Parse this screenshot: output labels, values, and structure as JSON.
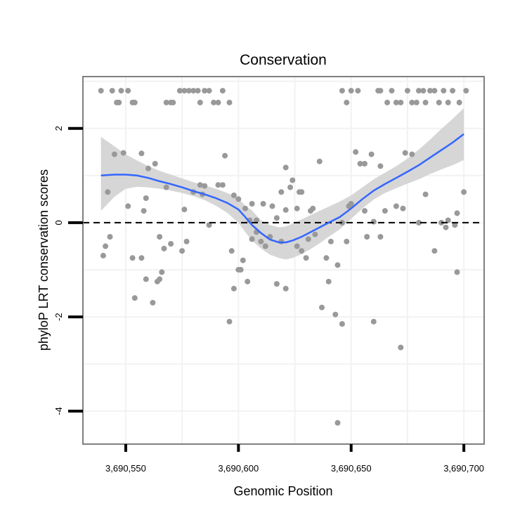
{
  "chart_data": {
    "type": "scatter",
    "title": "Conservation",
    "xlabel": "Genomic Position",
    "ylabel": "phyloP LRT conservation scores",
    "xlim": [
      3690531,
      3690709
    ],
    "ylim": [
      -4.7,
      3.1
    ],
    "x_ticks": [
      {
        "value": 3690550,
        "label": "3,690,550"
      },
      {
        "value": 3690600,
        "label": "3,690,600"
      },
      {
        "value": 3690650,
        "label": "3,690,650"
      },
      {
        "value": 3690700,
        "label": "3,690,700"
      }
    ],
    "y_ticks": [
      {
        "value": 2,
        "label": "2"
      },
      {
        "value": 0,
        "label": "0"
      },
      {
        "value": -2,
        "label": "-2"
      },
      {
        "value": -4,
        "label": "-4"
      }
    ],
    "reference_line": {
      "y": 0,
      "style": "dashed"
    },
    "grid": true,
    "colors": {
      "points": "#999999",
      "smooth": "#3366FF",
      "band": "#D6D6D6",
      "border": "#7F7F7F",
      "grid": "#F2F2F2"
    },
    "series": [
      {
        "name": "scores",
        "points": [
          [
            3690539,
            2.8
          ],
          [
            3690544,
            2.8
          ],
          [
            3690548,
            2.8
          ],
          [
            3690551,
            2.8
          ],
          [
            3690546,
            2.55
          ],
          [
            3690547,
            2.55
          ],
          [
            3690553,
            2.55
          ],
          [
            3690554,
            2.55
          ],
          [
            3690568,
            2.55
          ],
          [
            3690570,
            2.55
          ],
          [
            3690571,
            2.55
          ],
          [
            3690574,
            2.8
          ],
          [
            3690576,
            2.8
          ],
          [
            3690578,
            2.8
          ],
          [
            3690580,
            2.8
          ],
          [
            3690582,
            2.8
          ],
          [
            3690583,
            2.55
          ],
          [
            3690585,
            2.8
          ],
          [
            3690587,
            2.8
          ],
          [
            3690589,
            2.55
          ],
          [
            3690591,
            2.55
          ],
          [
            3690593,
            2.8
          ],
          [
            3690596,
            2.55
          ],
          [
            3690646,
            2.8
          ],
          [
            3690648,
            2.55
          ],
          [
            3690650,
            2.8
          ],
          [
            3690653,
            2.8
          ],
          [
            3690662,
            2.8
          ],
          [
            3690663,
            2.8
          ],
          [
            3690666,
            2.55
          ],
          [
            3690668,
            2.8
          ],
          [
            3690670,
            2.55
          ],
          [
            3690672,
            2.55
          ],
          [
            3690675,
            2.8
          ],
          [
            3690677,
            2.55
          ],
          [
            3690679,
            2.55
          ],
          [
            3690680,
            2.8
          ],
          [
            3690682,
            2.8
          ],
          [
            3690683,
            2.55
          ],
          [
            3690685,
            2.8
          ],
          [
            3690687,
            2.8
          ],
          [
            3690689,
            2.55
          ],
          [
            3690691,
            2.8
          ],
          [
            3690693,
            2.55
          ],
          [
            3690695,
            2.8
          ],
          [
            3690698,
            2.55
          ],
          [
            3690701,
            2.8
          ],
          [
            3690545,
            1.45
          ],
          [
            3690549,
            1.48
          ],
          [
            3690557,
            1.47
          ],
          [
            3690594,
            1.42
          ],
          [
            3690652,
            1.5
          ],
          [
            3690654,
            1.25
          ],
          [
            3690656,
            1.25
          ],
          [
            3690659,
            1.45
          ],
          [
            3690663,
            1.2
          ],
          [
            3690674,
            1.48
          ],
          [
            3690677,
            1.45
          ],
          [
            3690621,
            1.17
          ],
          [
            3690636,
            1.3
          ],
          [
            3690650,
            0.4
          ],
          [
            3690542,
            0.65
          ],
          [
            3690551,
            0.35
          ],
          [
            3690558,
            0.25
          ],
          [
            3690559,
            0.52
          ],
          [
            3690560,
            1.15
          ],
          [
            3690563,
            1.25
          ],
          [
            3690568,
            0.75
          ],
          [
            3690576,
            0.28
          ],
          [
            3690580,
            0.65
          ],
          [
            3690583,
            0.8
          ],
          [
            3690584,
            0.6
          ],
          [
            3690585,
            0.78
          ],
          [
            3690591,
            0.8
          ],
          [
            3690593,
            0.8
          ],
          [
            3690598,
            0.58
          ],
          [
            3690600,
            0.5
          ],
          [
            3690603,
            0.3
          ],
          [
            3690605,
            0.05
          ],
          [
            3690606,
            0.4
          ],
          [
            3690608,
            0.05
          ],
          [
            3690611,
            0.4
          ],
          [
            3690615,
            0.35
          ],
          [
            3690617,
            0.1
          ],
          [
            3690619,
            0.65
          ],
          [
            3690621,
            0.27
          ],
          [
            3690623,
            0.75
          ],
          [
            3690624,
            0.9
          ],
          [
            3690626,
            0.3
          ],
          [
            3690627,
            0.65
          ],
          [
            3690628,
            0.65
          ],
          [
            3690632,
            0.25
          ],
          [
            3690633,
            0.3
          ],
          [
            3690646,
            0.0
          ],
          [
            3690649,
            0.35
          ],
          [
            3690656,
            0.25
          ],
          [
            3690660,
            0.02
          ],
          [
            3690665,
            0.25
          ],
          [
            3690670,
            0.35
          ],
          [
            3690673,
            0.3
          ],
          [
            3690680,
            0.0
          ],
          [
            3690683,
            0.6
          ],
          [
            3690690,
            0.0
          ],
          [
            3690692,
            -0.1
          ],
          [
            3690693,
            0.05
          ],
          [
            3690697,
            0.2
          ],
          [
            3690700,
            0.65
          ],
          [
            3690540,
            -0.7
          ],
          [
            3690541,
            -0.5
          ],
          [
            3690543,
            -0.3
          ],
          [
            3690553,
            -0.75
          ],
          [
            3690557,
            -0.75
          ],
          [
            3690565,
            -0.3
          ],
          [
            3690567,
            -0.55
          ],
          [
            3690570,
            -0.45
          ],
          [
            3690575,
            -0.6
          ],
          [
            3690577,
            -0.4
          ],
          [
            3690587,
            -0.05
          ],
          [
            3690597,
            -0.6
          ],
          [
            3690598,
            -1.4
          ],
          [
            3690600,
            -1.0
          ],
          [
            3690601,
            -1.0
          ],
          [
            3690602,
            -0.8
          ],
          [
            3690604,
            -1.25
          ],
          [
            3690606,
            -0.35
          ],
          [
            3690608,
            -0.2
          ],
          [
            3690610,
            -0.4
          ],
          [
            3690612,
            -0.5
          ],
          [
            3690614,
            -0.3
          ],
          [
            3690617,
            -1.3
          ],
          [
            3690619,
            -0.4
          ],
          [
            3690621,
            -1.4
          ],
          [
            3690626,
            -0.5
          ],
          [
            3690628,
            -0.6
          ],
          [
            3690630,
            -0.75
          ],
          [
            3690631,
            -0.35
          ],
          [
            3690634,
            -0.25
          ],
          [
            3690637,
            -1.8
          ],
          [
            3690639,
            -0.75
          ],
          [
            3690640,
            -1.25
          ],
          [
            3690641,
            -0.4
          ],
          [
            3690643,
            -1.95
          ],
          [
            3690644,
            -0.9
          ],
          [
            3690646,
            -2.15
          ],
          [
            3690648,
            -0.4
          ],
          [
            3690657,
            -0.3
          ],
          [
            3690660,
            -2.1
          ],
          [
            3690663,
            -0.3
          ],
          [
            3690672,
            -2.65
          ],
          [
            3690687,
            -0.6
          ],
          [
            3690697,
            -1.05
          ],
          [
            3690696,
            -0.05
          ],
          [
            3690554,
            -1.6
          ],
          [
            3690559,
            -1.2
          ],
          [
            3690562,
            -1.7
          ],
          [
            3690564,
            -1.25
          ],
          [
            3690565,
            -1.2
          ],
          [
            3690566,
            -1.05
          ],
          [
            3690596,
            -2.1
          ],
          [
            3690644,
            -4.25
          ]
        ]
      },
      {
        "name": "smooth",
        "x": [
          3690539,
          3690545,
          3690550,
          3690555,
          3690560,
          3690565,
          3690570,
          3690575,
          3690580,
          3690585,
          3690590,
          3690595,
          3690600,
          3690603,
          3690606,
          3690610,
          3690614,
          3690618,
          3690621,
          3690624,
          3690628,
          3690632,
          3690636,
          3690640,
          3690645,
          3690650,
          3690655,
          3690660,
          3690665,
          3690670,
          3690675,
          3690680,
          3690685,
          3690690,
          3690695,
          3690700
        ],
        "y": [
          1.0,
          1.02,
          1.02,
          1.0,
          0.95,
          0.88,
          0.82,
          0.75,
          0.67,
          0.6,
          0.52,
          0.42,
          0.28,
          0.12,
          -0.05,
          -0.22,
          -0.36,
          -0.42,
          -0.42,
          -0.38,
          -0.3,
          -0.2,
          -0.1,
          0.0,
          0.12,
          0.3,
          0.5,
          0.68,
          0.82,
          0.95,
          1.08,
          1.22,
          1.38,
          1.54,
          1.7,
          1.88
        ],
        "ci_lower": [
          0.25,
          0.55,
          0.72,
          0.76,
          0.75,
          0.72,
          0.68,
          0.63,
          0.56,
          0.48,
          0.36,
          0.21,
          0.0,
          -0.2,
          -0.38,
          -0.55,
          -0.68,
          -0.75,
          -0.78,
          -0.75,
          -0.67,
          -0.56,
          -0.44,
          -0.3,
          -0.14,
          0.08,
          0.3,
          0.49,
          0.63,
          0.73,
          0.83,
          0.92,
          1.03,
          1.13,
          1.22,
          1.33
        ],
        "ci_upper": [
          1.82,
          1.62,
          1.45,
          1.32,
          1.2,
          1.1,
          1.02,
          0.94,
          0.86,
          0.79,
          0.72,
          0.63,
          0.52,
          0.36,
          0.26,
          0.05,
          -0.05,
          -0.1,
          -0.08,
          -0.02,
          0.07,
          0.16,
          0.25,
          0.34,
          0.45,
          0.58,
          0.75,
          0.92,
          1.06,
          1.2,
          1.36,
          1.55,
          1.76,
          1.99,
          2.2,
          2.43
        ]
      }
    ]
  }
}
